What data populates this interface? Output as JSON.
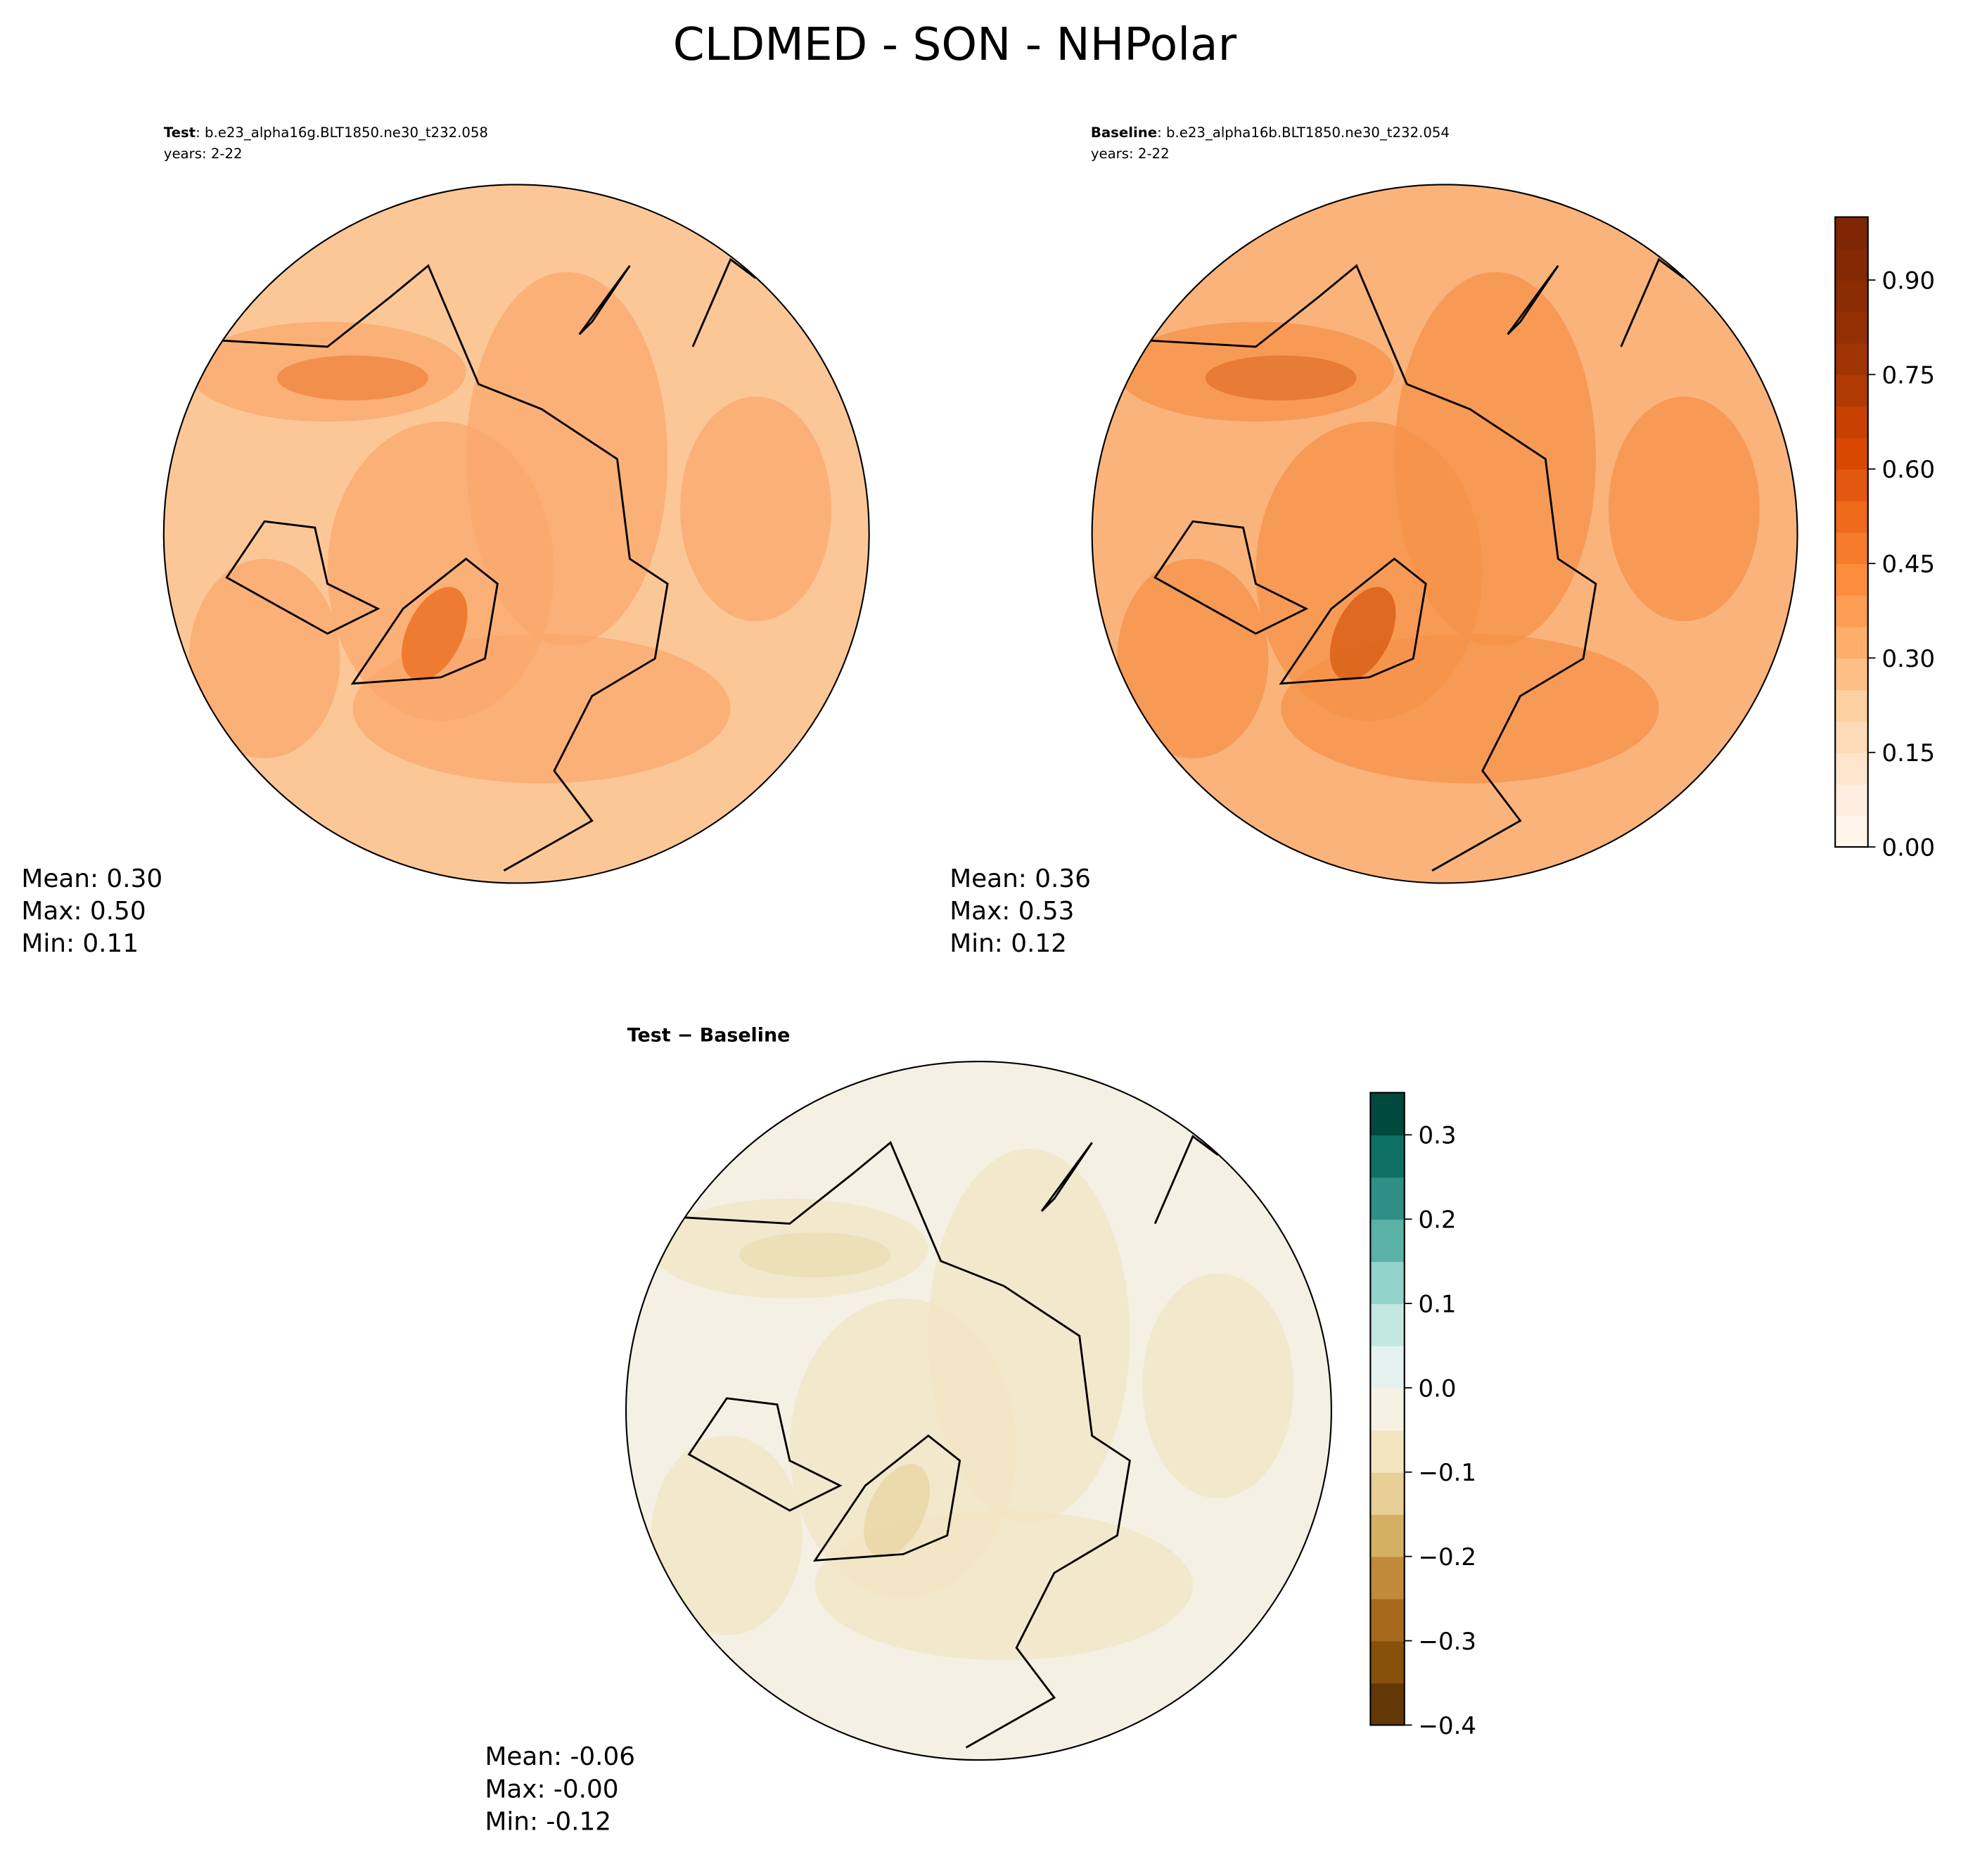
{
  "title": "CLDMED - SON - NHPolar",
  "chart_data": [
    {
      "type": "map",
      "label": "Test",
      "case": ": b.e23_alpha16g.BLT1850.ne30_t232.058",
      "years": "years: 2-22",
      "stats": [
        "Mean:  0.30",
        "Max:  0.50",
        "Min:  0.11"
      ],
      "base_color": "#fcc797",
      "patch_color": "#f9a86c",
      "dark_color": "#ec6e22"
    },
    {
      "type": "map",
      "label": "Baseline",
      "case": ": b.e23_alpha16b.BLT1850.ne30_t232.054",
      "years": "years: 2-22",
      "stats": [
        "Mean:  0.36",
        "Max:  0.53",
        "Min:  0.12"
      ],
      "base_color": "#fbb37c",
      "patch_color": "#f6914a",
      "dark_color": "#d95c14",
      "colorbar": {
        "ylim": [
          0,
          1
        ],
        "yticks": [
          {
            "value": 0,
            "label": "0.00"
          },
          {
            "value": 0.15,
            "label": "0.15"
          },
          {
            "value": 0.3,
            "label": "0.30"
          },
          {
            "value": 0.45,
            "label": "0.45"
          },
          {
            "value": 0.6,
            "label": "0.60"
          },
          {
            "value": 0.75,
            "label": "0.75"
          },
          {
            "value": 0.9,
            "label": "0.90"
          }
        ],
        "colors": [
          "#fff5eb",
          "#feeedf",
          "#fee6ce",
          "#fddbb8",
          "#fdd0a2",
          "#fdbf86",
          "#fdae6b",
          "#fd9d53",
          "#fd8d3c",
          "#f67b2a",
          "#ef6a1b",
          "#e35710",
          "#d94801",
          "#c64102",
          "#b13a03",
          "#a03403",
          "#933003",
          "#8b2c04",
          "#842904",
          "#7f2704"
        ]
      }
    },
    {
      "type": "map",
      "label": "Test − Baseline",
      "stats": [
        "Mean: -0.06",
        "Max: -0.00",
        "Min: -0.12"
      ],
      "base_color": "#f4f0e3",
      "patch_color": "#f2e6c4",
      "dark_color": "#e8d6a4",
      "colorbar": {
        "ylim": [
          -0.4,
          0.35
        ],
        "yticks": [
          {
            "value": -0.4,
            "label": "−0.4"
          },
          {
            "value": -0.3,
            "label": "−0.3"
          },
          {
            "value": -0.2,
            "label": "−0.2"
          },
          {
            "value": -0.1,
            "label": "−0.1"
          },
          {
            "value": 0,
            "label": "0.0"
          },
          0.1,
          0.2,
          0.3
        ],
        "colors": [
          "#633806",
          "#87500b",
          "#a76a1d",
          "#c08a3a",
          "#d4b063",
          "#e8cf96",
          "#f3e5c0",
          "#f5f1e3",
          "#e5f2ef",
          "#c3e8e1",
          "#92d4c9",
          "#5ab2a7",
          "#2f8f86",
          "#0e7065",
          "#01493c"
        ]
      }
    }
  ]
}
